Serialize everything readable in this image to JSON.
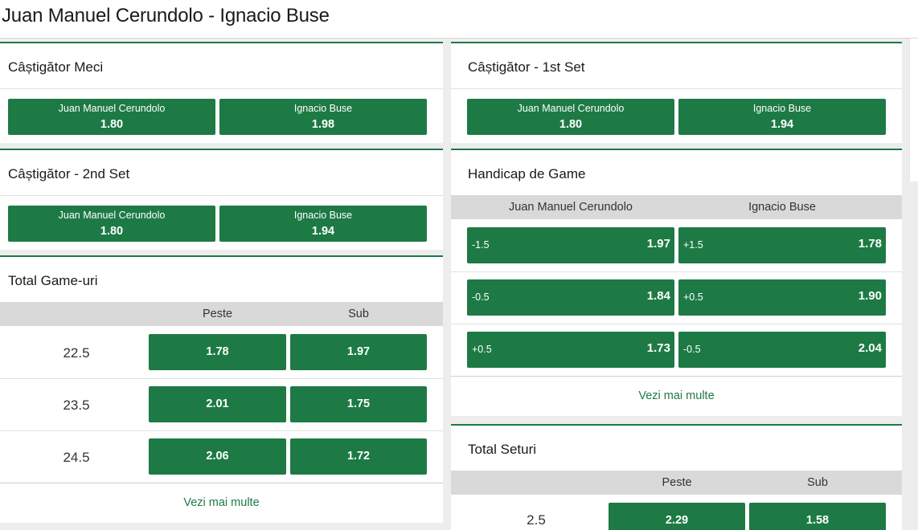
{
  "page": {
    "title": "Juan Manuel Cerundolo - Ignacio Buse"
  },
  "markets": {
    "match_winner": {
      "title": "Câștigător Meci",
      "selections": [
        {
          "name": "Juan Manuel Cerundolo",
          "odd": "1.80"
        },
        {
          "name": "Ignacio Buse",
          "odd": "1.98"
        }
      ]
    },
    "set1_winner": {
      "title": "Câștigător - 1st Set",
      "selections": [
        {
          "name": "Juan Manuel Cerundolo",
          "odd": "1.80"
        },
        {
          "name": "Ignacio Buse",
          "odd": "1.94"
        }
      ]
    },
    "set2_winner": {
      "title": "Câștigător - 2nd Set",
      "selections": [
        {
          "name": "Juan Manuel Cerundolo",
          "odd": "1.80"
        },
        {
          "name": "Ignacio Buse",
          "odd": "1.94"
        }
      ]
    },
    "game_handicap": {
      "title": "Handicap de Game",
      "col1": "Juan Manuel Cerundolo",
      "col2": "Ignacio Buse",
      "rows": [
        {
          "line1": "-1.5",
          "odd1": "1.97",
          "line2": "+1.5",
          "odd2": "1.78"
        },
        {
          "line1": "-0.5",
          "odd1": "1.84",
          "line2": "+0.5",
          "odd2": "1.90"
        },
        {
          "line1": "+0.5",
          "odd1": "1.73",
          "line2": "-0.5",
          "odd2": "2.04"
        }
      ],
      "more": "Vezi mai multe"
    },
    "total_games": {
      "title": "Total Game-uri",
      "over_label": "Peste",
      "under_label": "Sub",
      "rows": [
        {
          "line": "22.5",
          "over": "1.78",
          "under": "1.97"
        },
        {
          "line": "23.5",
          "over": "2.01",
          "under": "1.75"
        },
        {
          "line": "24.5",
          "over": "2.06",
          "under": "1.72"
        }
      ],
      "more": "Vezi mai multe"
    },
    "total_sets": {
      "title": "Total Seturi",
      "over_label": "Peste",
      "under_label": "Sub",
      "rows": [
        {
          "line": "2.5",
          "over": "2.29",
          "under": "1.58"
        }
      ]
    }
  },
  "colors": {
    "accent": "#1d7a45",
    "header_bar": "#d9d9d9",
    "background": "#ededed"
  }
}
